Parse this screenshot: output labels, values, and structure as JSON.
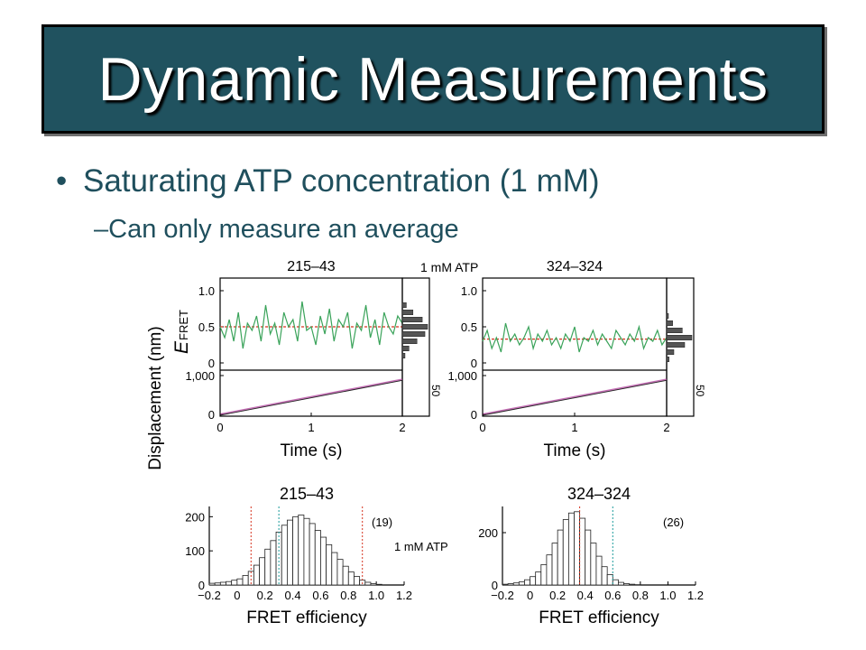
{
  "slide": {
    "title": "Dynamic Measurements",
    "bullet": "Saturating ATP concentration (1 mM)",
    "sub_bullet": "Can only measure an average",
    "bullet_marker": "•",
    "sub_marker": "–"
  },
  "colors": {
    "title_bg": "#20525f",
    "text": "#1f4f5d",
    "trace": "#3aa35a",
    "mean": "#d6321e",
    "fit": "#b0429c",
    "cyan": "#1a9a9a"
  },
  "chart_data": [
    {
      "type": "line",
      "panel": "time-traces",
      "condition_label": "1 mM ATP",
      "ylabel_fret": "E",
      "ylabel_fret_sub": "FRET",
      "ylabel_disp": "Displacement (nm)",
      "xlabel": "Time (s)",
      "hist_tick_label": "50",
      "traces": [
        {
          "title": "215–43",
          "fret": {
            "ylim": [
              0,
              1.1
            ],
            "yticks": [
              "0",
              "0.5",
              "1.0"
            ],
            "mean": 0.5,
            "t": [
              0,
              0.05,
              0.1,
              0.15,
              0.2,
              0.25,
              0.3,
              0.35,
              0.4,
              0.45,
              0.5,
              0.55,
              0.6,
              0.65,
              0.7,
              0.75,
              0.8,
              0.85,
              0.9,
              0.95,
              1.0,
              1.05,
              1.1,
              1.15,
              1.2,
              1.25,
              1.3,
              1.35,
              1.4,
              1.45,
              1.5,
              1.55,
              1.6,
              1.65,
              1.7,
              1.75,
              1.8,
              1.85,
              1.9,
              1.95,
              2.0
            ],
            "e": [
              0.5,
              0.35,
              0.6,
              0.3,
              0.7,
              0.2,
              0.55,
              0.45,
              0.65,
              0.3,
              0.8,
              0.4,
              0.55,
              0.25,
              0.7,
              0.5,
              0.6,
              0.3,
              0.85,
              0.45,
              0.5,
              0.25,
              0.65,
              0.4,
              0.75,
              0.3,
              0.6,
              0.5,
              0.7,
              0.2,
              0.55,
              0.45,
              0.8,
              0.35,
              0.6,
              0.25,
              0.7,
              0.5,
              0.4,
              0.65,
              0.55
            ],
            "hist_bins": [
              0.1,
              0.2,
              0.3,
              0.4,
              0.5,
              0.6,
              0.7,
              0.8
            ],
            "hist_counts": [
              4,
              10,
              22,
              34,
              38,
              30,
              16,
              6
            ]
          },
          "disp": {
            "ylim": [
              0,
              1000
            ],
            "yticks": [
              "0",
              "1,000"
            ],
            "xticks": [
              "0",
              "1",
              "2"
            ],
            "xlim": [
              0,
              2
            ],
            "rate_nm_per_s": 450
          }
        },
        {
          "title": "324–324",
          "fret": {
            "ylim": [
              0,
              1.1
            ],
            "yticks": [
              "0",
              "0.5",
              "1.0"
            ],
            "mean": 0.33,
            "t": [
              0,
              0.05,
              0.1,
              0.15,
              0.2,
              0.25,
              0.3,
              0.35,
              0.4,
              0.45,
              0.5,
              0.55,
              0.6,
              0.65,
              0.7,
              0.75,
              0.8,
              0.85,
              0.9,
              0.95,
              1.0,
              1.05,
              1.1,
              1.15,
              1.2,
              1.25,
              1.3,
              1.35,
              1.4,
              1.45,
              1.5,
              1.55,
              1.6,
              1.65,
              1.7,
              1.75,
              1.8,
              1.85,
              1.9,
              1.95,
              2.0
            ],
            "e": [
              0.3,
              0.45,
              0.2,
              0.35,
              0.15,
              0.55,
              0.3,
              0.4,
              0.25,
              0.35,
              0.5,
              0.2,
              0.4,
              0.3,
              0.45,
              0.25,
              0.35,
              0.2,
              0.4,
              0.3,
              0.5,
              0.15,
              0.35,
              0.3,
              0.45,
              0.25,
              0.4,
              0.3,
              0.2,
              0.45,
              0.35,
              0.25,
              0.4,
              0.3,
              0.5,
              0.2,
              0.35,
              0.3,
              0.45,
              0.25,
              0.35
            ],
            "hist_bins": [
              0.05,
              0.15,
              0.25,
              0.35,
              0.45,
              0.55,
              0.65
            ],
            "hist_counts": [
              4,
              12,
              30,
              42,
              26,
              10,
              3
            ]
          },
          "disp": {
            "ylim": [
              0,
              1000
            ],
            "yticks": [
              "0",
              "1,000"
            ],
            "xticks": [
              "0",
              "1",
              "2"
            ],
            "xlim": [
              0,
              2
            ],
            "rate_nm_per_s": 450
          }
        }
      ]
    },
    {
      "type": "bar",
      "panel": "histograms",
      "xlabel": "FRET efficiency",
      "xlim": [
        -0.2,
        1.2
      ],
      "xticks": [
        "−0.2",
        "0",
        "0.2",
        "0.4",
        "0.6",
        "0.8",
        "1.0",
        "1.2"
      ],
      "condition_label": "1 mM ATP",
      "histograms": [
        {
          "title": "215–43",
          "count_label": "(19)",
          "ylim": [
            0,
            230
          ],
          "yticks": [
            "0",
            "100",
            "200"
          ],
          "bins": [
            -0.18,
            -0.14,
            -0.1,
            -0.06,
            -0.02,
            0.02,
            0.06,
            0.1,
            0.14,
            0.18,
            0.22,
            0.26,
            0.3,
            0.34,
            0.38,
            0.42,
            0.46,
            0.5,
            0.54,
            0.58,
            0.62,
            0.66,
            0.7,
            0.74,
            0.78,
            0.82,
            0.86,
            0.9,
            0.94,
            0.98,
            1.02
          ],
          "counts": [
            5,
            6,
            8,
            10,
            14,
            18,
            28,
            40,
            58,
            80,
            105,
            130,
            155,
            175,
            190,
            200,
            205,
            195,
            180,
            160,
            140,
            118,
            95,
            75,
            55,
            38,
            25,
            14,
            8,
            4,
            2
          ],
          "vlines_red": [
            0.1,
            0.9
          ],
          "vlines_cyan": [
            0.3
          ]
        },
        {
          "title": "324–324",
          "count_label": "(26)",
          "ylim": [
            0,
            300
          ],
          "yticks": [
            "0",
            "200"
          ],
          "bins": [
            -0.18,
            -0.14,
            -0.1,
            -0.06,
            -0.02,
            0.02,
            0.06,
            0.1,
            0.14,
            0.18,
            0.22,
            0.26,
            0.3,
            0.34,
            0.38,
            0.42,
            0.46,
            0.5,
            0.54,
            0.58,
            0.62,
            0.66,
            0.7,
            0.74,
            0.78
          ],
          "counts": [
            3,
            5,
            8,
            12,
            20,
            32,
            50,
            78,
            115,
            160,
            210,
            250,
            275,
            280,
            255,
            210,
            160,
            110,
            70,
            40,
            20,
            10,
            5,
            3,
            1
          ],
          "vlines_red": [
            0.36
          ],
          "vlines_cyan": [
            0.6
          ]
        }
      ]
    }
  ]
}
